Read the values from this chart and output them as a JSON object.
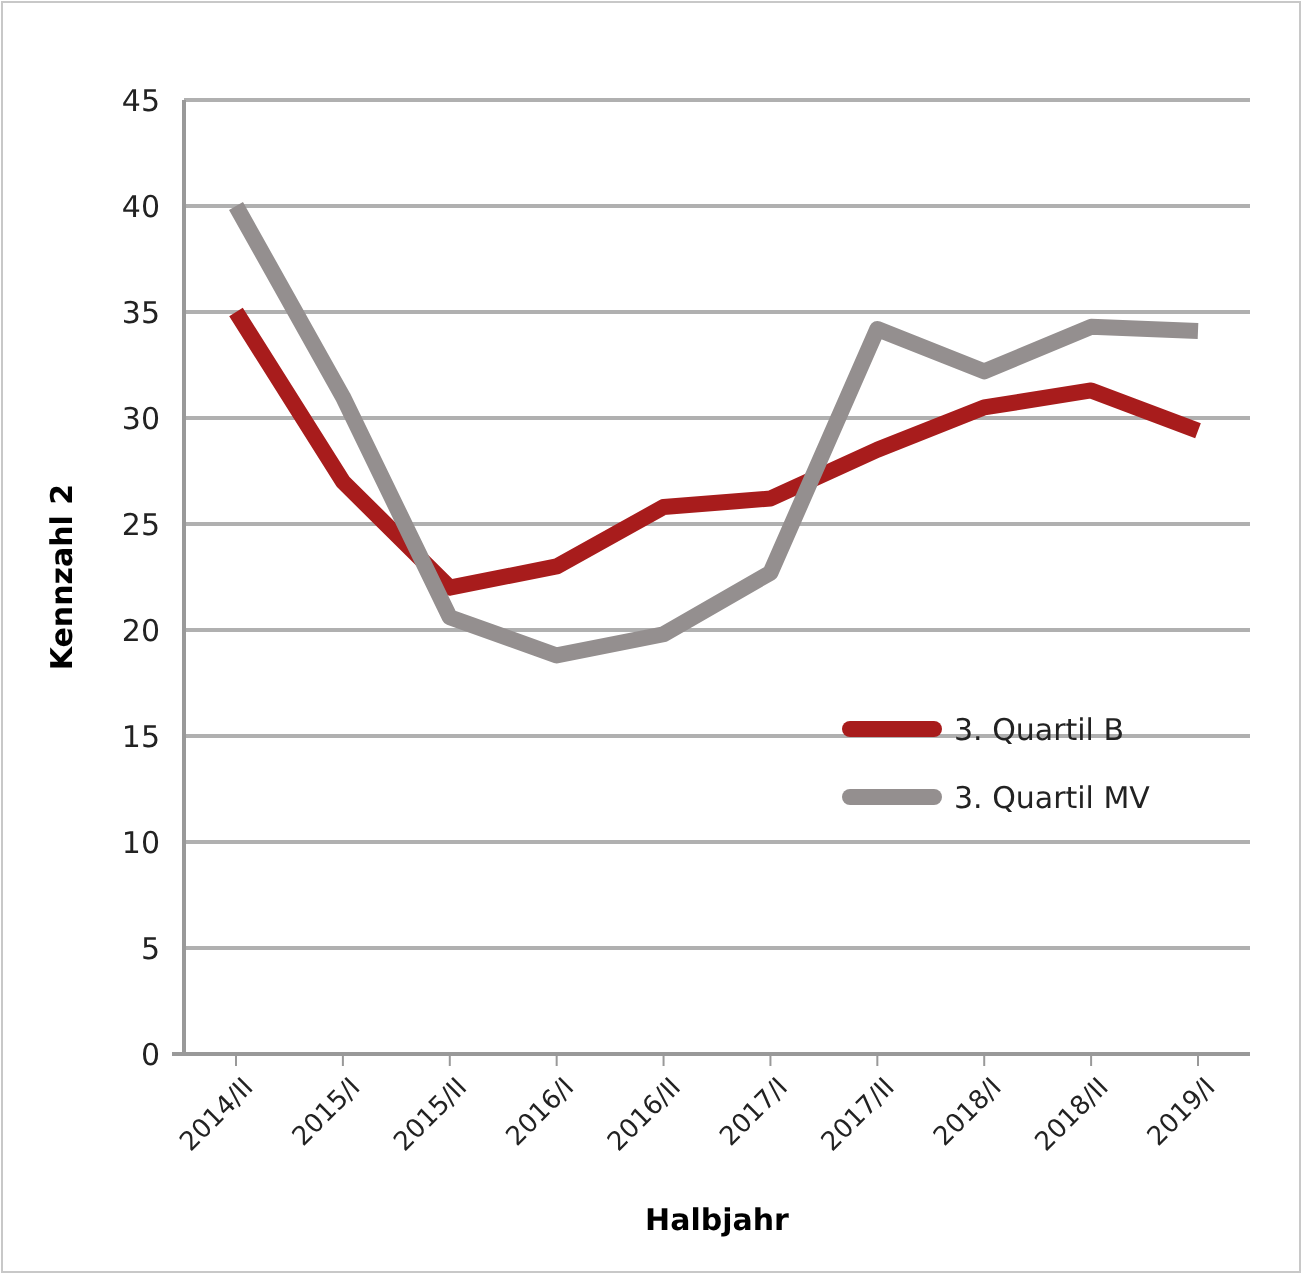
{
  "chart_data": {
    "type": "line",
    "xlabel": "Halbjahr",
    "ylabel": "Kennzahl 2",
    "categories": [
      "2014/II",
      "2015/I",
      "2015/II",
      "2016/I",
      "2016/II",
      "2017/I",
      "2017/II",
      "2018/I",
      "2018/II",
      "2019/I"
    ],
    "series": [
      {
        "name": "3. Quartil B",
        "color": "#a81c1c",
        "values": [
          35,
          27,
          22,
          23,
          25.8,
          26.2,
          28.5,
          30.5,
          31.3,
          29.4
        ]
      },
      {
        "name": "3. Quartil MV",
        "color": "#948f8f",
        "values": [
          40,
          31,
          20.6,
          18.8,
          19.8,
          22.7,
          34.2,
          32.2,
          34.3,
          34.1
        ]
      }
    ],
    "ylim": [
      0,
      45
    ],
    "yticks": [
      0,
      5,
      10,
      15,
      20,
      25,
      30,
      35,
      40,
      45
    ],
    "grid": "y",
    "legend": "right",
    "marker": "none",
    "line_style": "solid"
  }
}
